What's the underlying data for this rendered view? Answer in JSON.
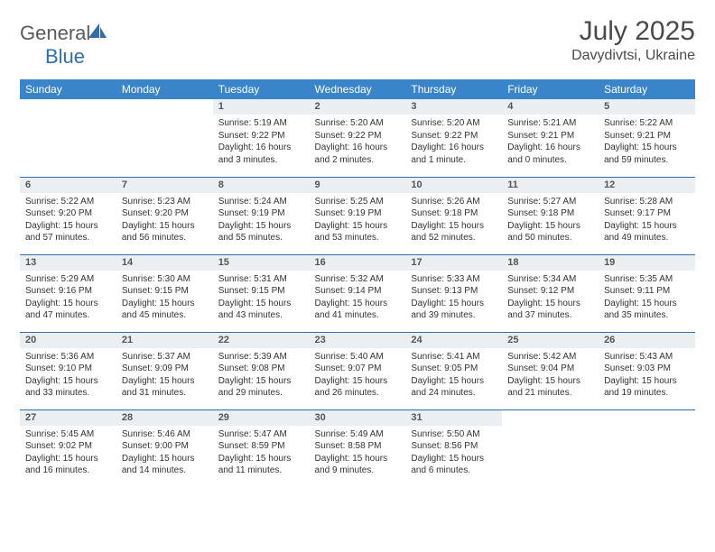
{
  "brand": {
    "part1": "General",
    "part2": "Blue"
  },
  "title": {
    "month": "July 2025",
    "location": "Davydivtsi, Ukraine"
  },
  "colors": {
    "header_bg": "#3a85c9",
    "header_text": "#ffffff",
    "rule": "#2f6fb0",
    "daynum_bg": "#eceff1",
    "body_text": "#333333",
    "background": "#ffffff"
  },
  "weekdays": [
    "Sunday",
    "Monday",
    "Tuesday",
    "Wednesday",
    "Thursday",
    "Friday",
    "Saturday"
  ],
  "weeks": [
    [
      null,
      null,
      {
        "n": "1",
        "sunrise": "Sunrise: 5:19 AM",
        "sunset": "Sunset: 9:22 PM",
        "day": "Daylight: 16 hours and 3 minutes."
      },
      {
        "n": "2",
        "sunrise": "Sunrise: 5:20 AM",
        "sunset": "Sunset: 9:22 PM",
        "day": "Daylight: 16 hours and 2 minutes."
      },
      {
        "n": "3",
        "sunrise": "Sunrise: 5:20 AM",
        "sunset": "Sunset: 9:22 PM",
        "day": "Daylight: 16 hours and 1 minute."
      },
      {
        "n": "4",
        "sunrise": "Sunrise: 5:21 AM",
        "sunset": "Sunset: 9:21 PM",
        "day": "Daylight: 16 hours and 0 minutes."
      },
      {
        "n": "5",
        "sunrise": "Sunrise: 5:22 AM",
        "sunset": "Sunset: 9:21 PM",
        "day": "Daylight: 15 hours and 59 minutes."
      }
    ],
    [
      {
        "n": "6",
        "sunrise": "Sunrise: 5:22 AM",
        "sunset": "Sunset: 9:20 PM",
        "day": "Daylight: 15 hours and 57 minutes."
      },
      {
        "n": "7",
        "sunrise": "Sunrise: 5:23 AM",
        "sunset": "Sunset: 9:20 PM",
        "day": "Daylight: 15 hours and 56 minutes."
      },
      {
        "n": "8",
        "sunrise": "Sunrise: 5:24 AM",
        "sunset": "Sunset: 9:19 PM",
        "day": "Daylight: 15 hours and 55 minutes."
      },
      {
        "n": "9",
        "sunrise": "Sunrise: 5:25 AM",
        "sunset": "Sunset: 9:19 PM",
        "day": "Daylight: 15 hours and 53 minutes."
      },
      {
        "n": "10",
        "sunrise": "Sunrise: 5:26 AM",
        "sunset": "Sunset: 9:18 PM",
        "day": "Daylight: 15 hours and 52 minutes."
      },
      {
        "n": "11",
        "sunrise": "Sunrise: 5:27 AM",
        "sunset": "Sunset: 9:18 PM",
        "day": "Daylight: 15 hours and 50 minutes."
      },
      {
        "n": "12",
        "sunrise": "Sunrise: 5:28 AM",
        "sunset": "Sunset: 9:17 PM",
        "day": "Daylight: 15 hours and 49 minutes."
      }
    ],
    [
      {
        "n": "13",
        "sunrise": "Sunrise: 5:29 AM",
        "sunset": "Sunset: 9:16 PM",
        "day": "Daylight: 15 hours and 47 minutes."
      },
      {
        "n": "14",
        "sunrise": "Sunrise: 5:30 AM",
        "sunset": "Sunset: 9:15 PM",
        "day": "Daylight: 15 hours and 45 minutes."
      },
      {
        "n": "15",
        "sunrise": "Sunrise: 5:31 AM",
        "sunset": "Sunset: 9:15 PM",
        "day": "Daylight: 15 hours and 43 minutes."
      },
      {
        "n": "16",
        "sunrise": "Sunrise: 5:32 AM",
        "sunset": "Sunset: 9:14 PM",
        "day": "Daylight: 15 hours and 41 minutes."
      },
      {
        "n": "17",
        "sunrise": "Sunrise: 5:33 AM",
        "sunset": "Sunset: 9:13 PM",
        "day": "Daylight: 15 hours and 39 minutes."
      },
      {
        "n": "18",
        "sunrise": "Sunrise: 5:34 AM",
        "sunset": "Sunset: 9:12 PM",
        "day": "Daylight: 15 hours and 37 minutes."
      },
      {
        "n": "19",
        "sunrise": "Sunrise: 5:35 AM",
        "sunset": "Sunset: 9:11 PM",
        "day": "Daylight: 15 hours and 35 minutes."
      }
    ],
    [
      {
        "n": "20",
        "sunrise": "Sunrise: 5:36 AM",
        "sunset": "Sunset: 9:10 PM",
        "day": "Daylight: 15 hours and 33 minutes."
      },
      {
        "n": "21",
        "sunrise": "Sunrise: 5:37 AM",
        "sunset": "Sunset: 9:09 PM",
        "day": "Daylight: 15 hours and 31 minutes."
      },
      {
        "n": "22",
        "sunrise": "Sunrise: 5:39 AM",
        "sunset": "Sunset: 9:08 PM",
        "day": "Daylight: 15 hours and 29 minutes."
      },
      {
        "n": "23",
        "sunrise": "Sunrise: 5:40 AM",
        "sunset": "Sunset: 9:07 PM",
        "day": "Daylight: 15 hours and 26 minutes."
      },
      {
        "n": "24",
        "sunrise": "Sunrise: 5:41 AM",
        "sunset": "Sunset: 9:05 PM",
        "day": "Daylight: 15 hours and 24 minutes."
      },
      {
        "n": "25",
        "sunrise": "Sunrise: 5:42 AM",
        "sunset": "Sunset: 9:04 PM",
        "day": "Daylight: 15 hours and 21 minutes."
      },
      {
        "n": "26",
        "sunrise": "Sunrise: 5:43 AM",
        "sunset": "Sunset: 9:03 PM",
        "day": "Daylight: 15 hours and 19 minutes."
      }
    ],
    [
      {
        "n": "27",
        "sunrise": "Sunrise: 5:45 AM",
        "sunset": "Sunset: 9:02 PM",
        "day": "Daylight: 15 hours and 16 minutes."
      },
      {
        "n": "28",
        "sunrise": "Sunrise: 5:46 AM",
        "sunset": "Sunset: 9:00 PM",
        "day": "Daylight: 15 hours and 14 minutes."
      },
      {
        "n": "29",
        "sunrise": "Sunrise: 5:47 AM",
        "sunset": "Sunset: 8:59 PM",
        "day": "Daylight: 15 hours and 11 minutes."
      },
      {
        "n": "30",
        "sunrise": "Sunrise: 5:49 AM",
        "sunset": "Sunset: 8:58 PM",
        "day": "Daylight: 15 hours and 9 minutes."
      },
      {
        "n": "31",
        "sunrise": "Sunrise: 5:50 AM",
        "sunset": "Sunset: 8:56 PM",
        "day": "Daylight: 15 hours and 6 minutes."
      },
      null,
      null
    ]
  ]
}
